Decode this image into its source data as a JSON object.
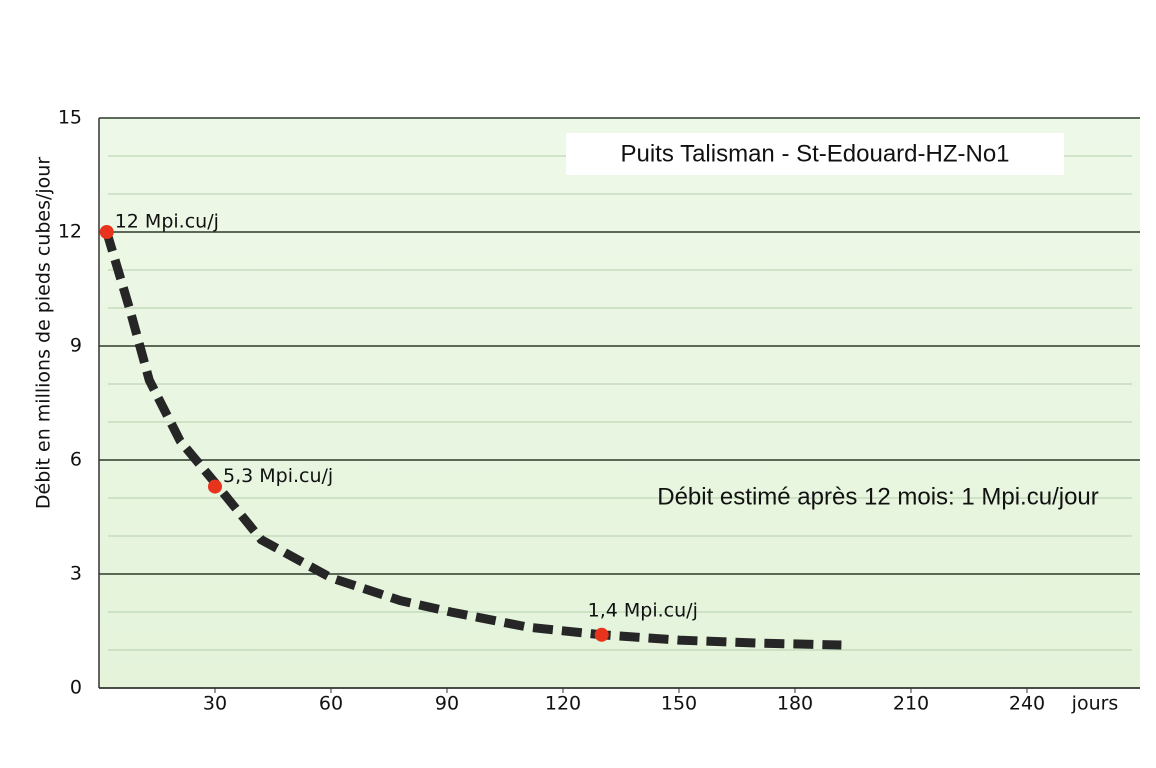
{
  "chart_data": {
    "type": "line",
    "title": "Puits Talisman - St-Edouard-HZ-No1",
    "ylabel": "Débit en millions de pieds cubes/jour",
    "xlabel": "jours",
    "annotation": "Débit estimé après 12 mois: 1 Mpi.cu/jour",
    "xlim": [
      0,
      270
    ],
    "xticks": [
      30,
      60,
      90,
      120,
      150,
      180,
      210,
      240
    ],
    "ylim": [
      0,
      15
    ],
    "yticks": [
      0,
      3,
      6,
      9,
      12,
      15
    ],
    "minor_yticks": [
      1,
      2,
      4,
      5,
      7,
      8,
      10,
      11,
      13,
      14
    ],
    "grid": true,
    "curve": {
      "color": "#262626",
      "dashed": true,
      "x": [
        2,
        8,
        13,
        21,
        30,
        42,
        60,
        78,
        91,
        111,
        130,
        150,
        171,
        192
      ],
      "values": [
        12,
        9.95,
        8.1,
        6.5,
        5.4,
        3.9,
        2.9,
        2.3,
        2.0,
        1.6,
        1.4,
        1.26,
        1.18,
        1.13
      ]
    },
    "points": {
      "color": "#e8341c",
      "x": [
        2,
        30,
        130
      ],
      "values": [
        12,
        5.3,
        1.4
      ],
      "value_labels": [
        "12 Mpi.cu/j",
        "5,3 Mpi.cu/j",
        "1,4 Mpi.cu/j"
      ]
    }
  }
}
